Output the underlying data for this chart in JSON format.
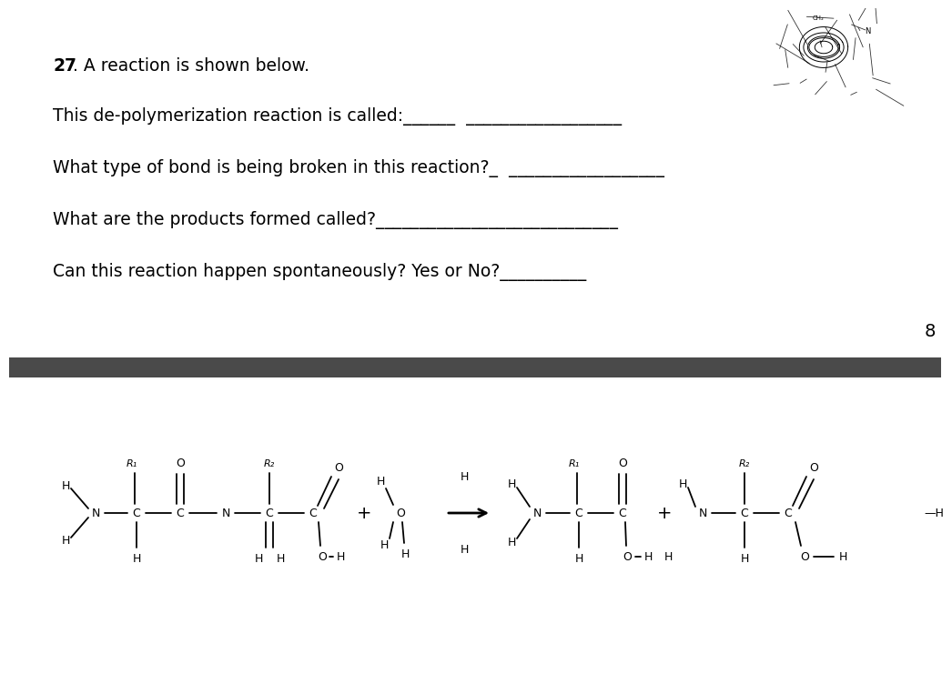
{
  "background_color": "#ffffff",
  "divider_color": "#4a4a4a",
  "text_color": "#000000",
  "title_bold": "27",
  "title_rest": ". A reaction is shown below.",
  "q1": "This de-polymerization reaction is called:______  __________________",
  "q2": "What type of bond is being broken in this reaction?_  __________________",
  "q3": "What are the products formed called?____________________________",
  "q4": "Can this reaction happen spontaneously? Yes or No?__________",
  "page_number": "8",
  "font_size_text": 13.5
}
